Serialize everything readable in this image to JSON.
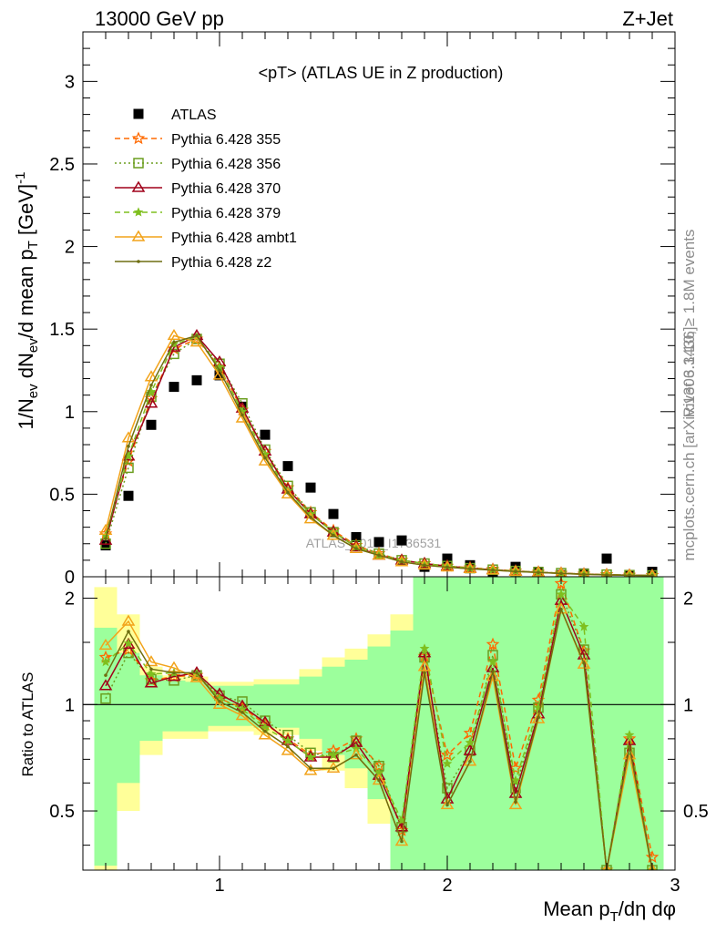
{
  "header": {
    "energy_label": "13000 GeV pp",
    "process_label": "Z+Jet"
  },
  "side_text": {
    "rivet": "Rivet 3.1.10, ≥ 1.8M events",
    "mcplots": "mcplots.cern.ch [arXiv:1306.3436]"
  },
  "watermark": "ATLAS_2019_I1736531",
  "chart_data": [
    {
      "panel": "main",
      "type": "scatter",
      "title": "<pT> (ATLAS UE in Z production)",
      "ylabel": "1/N_ev dN_ev/d mean p_T [GeV]^-1",
      "xlim": [
        0.4,
        3.0
      ],
      "ylim": [
        0,
        3.3
      ],
      "y_ticks": [
        0,
        0.5,
        1,
        1.5,
        2,
        2.5,
        3
      ],
      "y_tick_labels": [
        "0",
        "0.5",
        "1",
        "1.5",
        "2",
        "2.5",
        "3"
      ],
      "legend_position": "top-left",
      "x": [
        0.5,
        0.6,
        0.7,
        0.8,
        0.9,
        1.0,
        1.1,
        1.2,
        1.3,
        1.4,
        1.5,
        1.6,
        1.7,
        1.8,
        1.9,
        2.0,
        2.1,
        2.2,
        2.3,
        2.4,
        2.5,
        2.6,
        2.7,
        2.8,
        2.9
      ],
      "series": [
        {
          "name": "ATLAS",
          "color": "#000000",
          "marker": "square",
          "line": "none",
          "values": [
            0.19,
            0.49,
            0.92,
            1.15,
            1.19,
            1.22,
            1.03,
            0.86,
            0.67,
            0.54,
            0.38,
            0.24,
            0.21,
            0.22,
            0.06,
            0.11,
            0.07,
            0.03,
            0.06,
            0.03,
            0.01,
            0.02,
            0.11,
            0.01,
            0.03
          ]
        },
        {
          "name": "Pythia 6.428 355",
          "color": "#ff6a00",
          "marker": "star",
          "line": "dashed",
          "values": [
            0.26,
            0.7,
            1.08,
            1.38,
            1.44,
            1.27,
            1.01,
            0.76,
            0.54,
            0.39,
            0.28,
            0.19,
            0.14,
            0.1,
            0.08,
            0.065,
            0.055,
            0.045,
            0.035,
            0.028,
            0.022,
            0.017,
            0.013,
            0.01,
            0.008
          ]
        },
        {
          "name": "Pythia 6.428 356",
          "color": "#6b9e1f",
          "marker": "open-square",
          "line": "dotted",
          "values": [
            0.2,
            0.66,
            1.09,
            1.35,
            1.44,
            1.29,
            1.05,
            0.77,
            0.55,
            0.39,
            0.27,
            0.19,
            0.14,
            0.1,
            0.08,
            0.065,
            0.052,
            0.043,
            0.035,
            0.028,
            0.022,
            0.017,
            0.013,
            0.01,
            0.008
          ]
        },
        {
          "name": "Pythia 6.428 370",
          "color": "#a0001a",
          "marker": "open-triangle",
          "line": "solid",
          "values": [
            0.22,
            0.73,
            1.05,
            1.39,
            1.46,
            1.3,
            1.02,
            0.76,
            0.53,
            0.38,
            0.27,
            0.18,
            0.13,
            0.1,
            0.08,
            0.064,
            0.052,
            0.042,
            0.034,
            0.027,
            0.021,
            0.016,
            0.012,
            0.01,
            0.008
          ]
        },
        {
          "name": "Pythia 6.428 379",
          "color": "#7fbf1f",
          "marker": "small-star",
          "line": "dashed",
          "values": [
            0.25,
            0.73,
            1.12,
            1.41,
            1.45,
            1.27,
            1.0,
            0.74,
            0.52,
            0.38,
            0.27,
            0.18,
            0.13,
            0.1,
            0.08,
            0.064,
            0.052,
            0.042,
            0.034,
            0.027,
            0.021,
            0.016,
            0.012,
            0.01,
            0.008
          ]
        },
        {
          "name": "Pythia 6.428 ambt1",
          "color": "#f2a31a",
          "marker": "open-triangle",
          "line": "solid",
          "values": [
            0.28,
            0.84,
            1.21,
            1.46,
            1.42,
            1.22,
            0.96,
            0.7,
            0.5,
            0.35,
            0.25,
            0.17,
            0.13,
            0.09,
            0.07,
            0.058,
            0.048,
            0.04,
            0.032,
            0.026,
            0.02,
            0.015,
            0.011,
            0.009,
            0.007
          ]
        },
        {
          "name": "Pythia 6.428 z2",
          "color": "#6e6e10",
          "marker": "dot",
          "line": "solid",
          "values": [
            0.23,
            0.79,
            1.16,
            1.42,
            1.46,
            1.25,
            0.98,
            0.72,
            0.51,
            0.36,
            0.25,
            0.17,
            0.13,
            0.09,
            0.07,
            0.058,
            0.048,
            0.04,
            0.032,
            0.026,
            0.02,
            0.015,
            0.011,
            0.009,
            0.007
          ]
        }
      ]
    },
    {
      "panel": "ratio",
      "type": "line",
      "ylabel": "Ratio to ATLAS",
      "xlabel": "Mean p_T/dη dφ",
      "xlim": [
        0.4,
        3.0
      ],
      "ylim": [
        0.34,
        2.3
      ],
      "x_ticks": [
        1,
        2,
        3
      ],
      "x_tick_labels": [
        "1",
        "2",
        "3"
      ],
      "y_ticks": [
        0.5,
        1,
        2
      ],
      "y_tick_labels": [
        "0.5",
        "1",
        "2"
      ],
      "reference_line": 1,
      "x": [
        0.5,
        0.6,
        0.7,
        0.8,
        0.9,
        1.0,
        1.1,
        1.2,
        1.3,
        1.4,
        1.5,
        1.6,
        1.7,
        1.8,
        1.9,
        2.0,
        2.1,
        2.2,
        2.3,
        2.4,
        2.5,
        2.6,
        2.7,
        2.8,
        2.9
      ],
      "bands": {
        "inner_color": "#9cff9c",
        "outer_color": "#ffff99",
        "inner_lo": [
          0.35,
          0.6,
          0.79,
          0.84,
          0.84,
          0.87,
          0.87,
          0.86,
          0.86,
          0.8,
          0.72,
          0.66,
          0.54,
          0.34,
          0.34,
          0.34,
          0.34,
          0.34,
          0.34,
          0.34,
          0.34,
          0.34,
          0.34,
          0.34,
          0.34
        ],
        "inner_hi": [
          1.65,
          1.4,
          1.21,
          1.17,
          1.16,
          1.13,
          1.13,
          1.14,
          1.14,
          1.2,
          1.28,
          1.34,
          1.46,
          1.62,
          2.3,
          2.3,
          2.3,
          2.3,
          2.3,
          2.3,
          2.3,
          2.3,
          2.3,
          2.3,
          2.3
        ],
        "outer_lo": [
          0.34,
          0.5,
          0.72,
          0.8,
          0.8,
          0.84,
          0.84,
          0.82,
          0.82,
          0.74,
          0.65,
          0.58,
          0.46,
          0.34,
          0.34,
          0.34,
          0.34,
          0.34,
          0.34,
          0.34,
          0.34,
          0.34,
          0.34,
          0.34,
          0.34
        ],
        "outer_hi": [
          2.15,
          1.8,
          1.28,
          1.21,
          1.2,
          1.16,
          1.16,
          1.18,
          1.18,
          1.26,
          1.36,
          1.44,
          1.58,
          1.8,
          2.3,
          2.3,
          2.3,
          2.3,
          2.3,
          2.3,
          2.3,
          2.3,
          2.3,
          2.3,
          2.3
        ]
      },
      "series": [
        {
          "name": "Pythia 6.428 355",
          "values": [
            1.36,
            1.43,
            1.17,
            1.2,
            1.21,
            1.04,
            0.98,
            0.88,
            0.8,
            0.72,
            0.74,
            0.8,
            0.67,
            0.44,
            1.37,
            0.72,
            0.83,
            1.48,
            0.66,
            1.03,
            2.2,
            1.42,
            0.34,
            0.8,
            0.37
          ]
        },
        {
          "name": "Pythia 6.428 356",
          "values": [
            1.04,
            1.4,
            1.18,
            1.17,
            1.21,
            1.06,
            1.02,
            0.9,
            0.82,
            0.73,
            0.71,
            0.79,
            0.67,
            0.45,
            1.36,
            0.58,
            0.74,
            1.38,
            0.58,
            0.98,
            2.05,
            1.43,
            0.34,
            0.73,
            0.34
          ]
        },
        {
          "name": "Pythia 6.428 370",
          "values": [
            1.13,
            1.48,
            1.15,
            1.2,
            1.23,
            1.07,
            0.99,
            0.89,
            0.79,
            0.71,
            0.71,
            0.78,
            0.63,
            0.45,
            1.4,
            0.54,
            0.74,
            1.27,
            0.56,
            0.94,
            1.97,
            1.38,
            0.34,
            0.79,
            0.34
          ]
        },
        {
          "name": "Pythia 6.428 379",
          "values": [
            1.32,
            1.49,
            1.22,
            1.23,
            1.22,
            1.04,
            0.97,
            0.86,
            0.79,
            0.71,
            0.72,
            0.75,
            0.64,
            0.47,
            1.44,
            0.68,
            0.78,
            1.32,
            0.61,
            0.98,
            2.05,
            1.66,
            0.34,
            0.82,
            0.34
          ]
        },
        {
          "name": "Pythia 6.428 ambt1",
          "values": [
            1.47,
            1.72,
            1.32,
            1.27,
            1.19,
            1.0,
            0.93,
            0.82,
            0.74,
            0.65,
            0.66,
            0.72,
            0.61,
            0.41,
            1.28,
            0.52,
            0.69,
            1.2,
            0.52,
            0.91,
            1.86,
            1.3,
            0.34,
            0.72,
            0.34
          ]
        },
        {
          "name": "Pythia 6.428 z2",
          "values": [
            1.21,
            1.61,
            1.26,
            1.23,
            1.23,
            1.02,
            0.95,
            0.84,
            0.76,
            0.66,
            0.66,
            0.72,
            0.61,
            0.41,
            1.23,
            0.52,
            0.69,
            1.24,
            0.53,
            0.92,
            1.86,
            1.31,
            0.34,
            0.76,
            0.34
          ]
        }
      ]
    }
  ]
}
